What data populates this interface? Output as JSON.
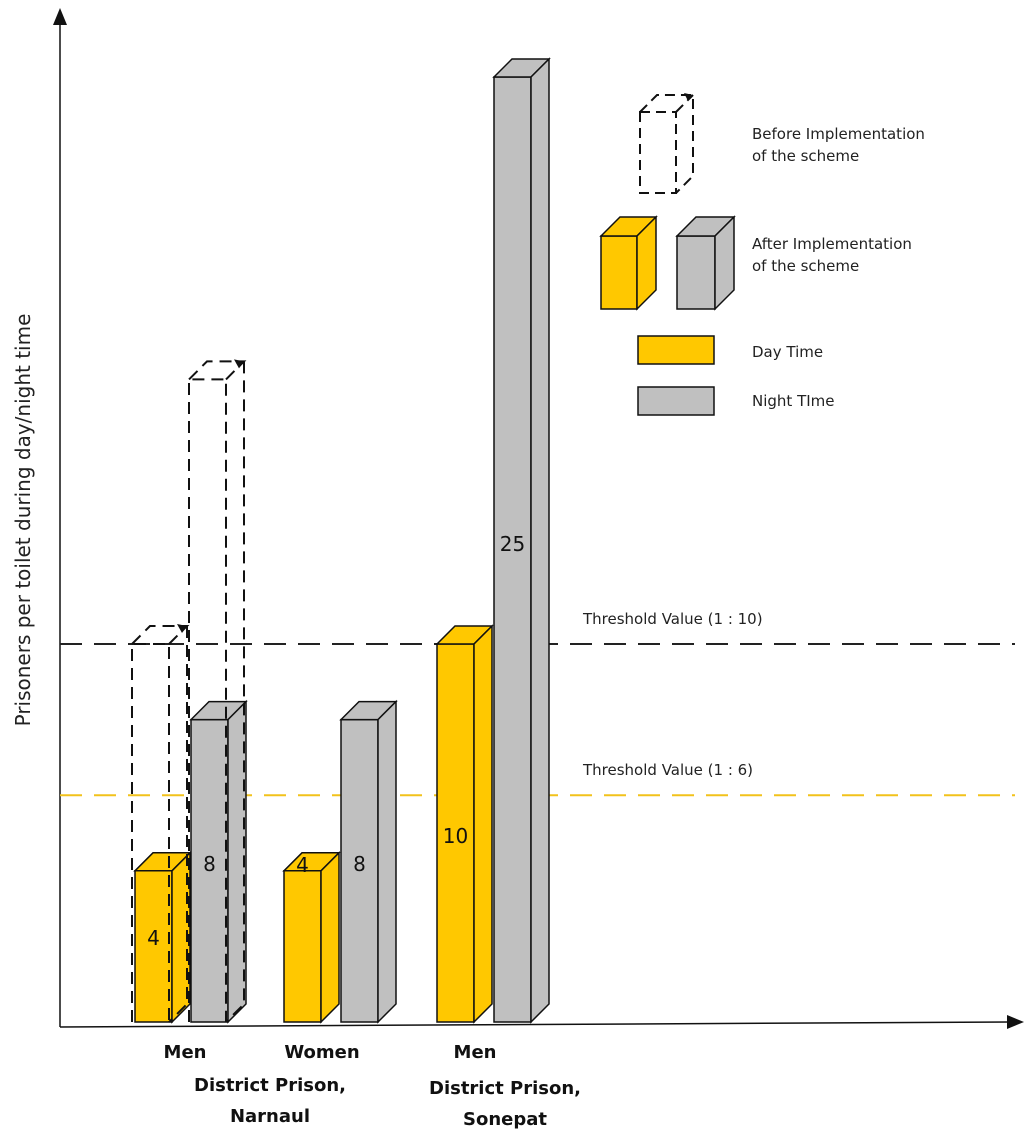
{
  "chart_data": {
    "type": "bar",
    "ylabel": "Prisoners per toilet during day/night time",
    "categories": [
      "Men",
      "Women",
      "Men"
    ],
    "groups": [
      "District Prison,\nNarnaul",
      "District Prison,\nSonepat"
    ],
    "series": [
      {
        "name": "Day Time",
        "color": "#FFC800",
        "values": [
          4,
          4,
          10
        ],
        "labels": [
          "4",
          "4",
          "10"
        ]
      },
      {
        "name": "Night TIme",
        "color": "#C0C0C0",
        "values": [
          8,
          8,
          25
        ],
        "labels": [
          "8",
          "8",
          "25"
        ]
      }
    ],
    "before_implementation": {
      "day": [
        10,
        null,
        null
      ],
      "night": [
        17,
        null,
        null
      ]
    },
    "thresholds": [
      {
        "label": "Threshold Value (1 : 10)",
        "value": 10,
        "color": "#222222"
      },
      {
        "label": "Threshold Value (1 : 6)",
        "value": 6,
        "color": "#F2C21B"
      }
    ],
    "legend": {
      "before": "Before Implementation\nof the scheme",
      "after": "After Implementation\nof the scheme",
      "day": "Day Time",
      "night": "Night TIme",
      "position": "top-right"
    },
    "grid": false
  }
}
